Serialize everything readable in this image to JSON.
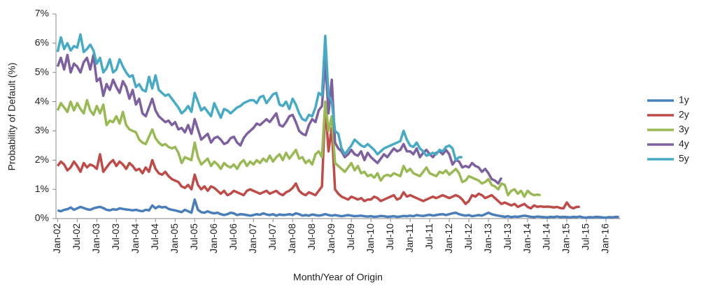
{
  "chart_data": {
    "type": "line",
    "x_label": "Month/Year of Origin",
    "y_label": "Probability of Default (%)",
    "categories": [
      "Jan-02",
      null,
      null,
      null,
      null,
      null,
      "Jul-02",
      null,
      null,
      null,
      null,
      null,
      "Jan-03",
      null,
      null,
      null,
      null,
      null,
      "Jul-03",
      null,
      null,
      null,
      null,
      null,
      "Jan-04",
      null,
      null,
      null,
      null,
      null,
      "Jul-04",
      null,
      null,
      null,
      null,
      null,
      "Jan-05",
      null,
      null,
      null,
      null,
      null,
      "Jul-05",
      null,
      null,
      null,
      null,
      null,
      "Jan-06",
      null,
      null,
      null,
      null,
      null,
      "Jul-06",
      null,
      null,
      null,
      null,
      null,
      "Jan-07",
      null,
      null,
      null,
      null,
      null,
      "Jul-07",
      null,
      null,
      null,
      null,
      null,
      "Jan-08",
      null,
      null,
      null,
      null,
      null,
      "Jul-08",
      null,
      null,
      null,
      null,
      null,
      "Jan-09",
      null,
      null,
      null,
      null,
      null,
      "Jul-09",
      null,
      null,
      null,
      null,
      null,
      "Jan-10",
      null,
      null,
      null,
      null,
      null,
      "Jul-10",
      null,
      null,
      null,
      null,
      null,
      "Jan-11",
      null,
      null,
      null,
      null,
      null,
      "Jul-11",
      null,
      null,
      null,
      null,
      null,
      "Jan-12",
      null,
      null,
      null,
      null,
      null,
      "Jul-12",
      null,
      null,
      null,
      null,
      null,
      "Jan-13",
      null,
      null,
      null,
      null,
      null,
      "Jul-13",
      null,
      null,
      null,
      null,
      null,
      "Jan-14",
      null,
      null,
      null,
      null,
      null,
      "Jul-14",
      null,
      null,
      null,
      null,
      null,
      "Jan-15",
      null,
      null,
      null,
      null,
      null,
      "Jul-15",
      null,
      null,
      null,
      null,
      null,
      "Jan-16",
      null,
      null,
      null,
      null
    ],
    "series": [
      {
        "name": "1y",
        "color": "#4a7ebb",
        "values": [
          0.28,
          0.25,
          0.3,
          0.32,
          0.38,
          0.3,
          0.35,
          0.4,
          0.36,
          0.32,
          0.3,
          0.35,
          0.38,
          0.4,
          0.36,
          0.3,
          0.28,
          0.32,
          0.3,
          0.35,
          0.33,
          0.31,
          0.3,
          0.28,
          0.3,
          0.27,
          0.25,
          0.3,
          0.28,
          0.45,
          0.35,
          0.42,
          0.38,
          0.4,
          0.33,
          0.3,
          0.28,
          0.25,
          0.22,
          0.3,
          0.25,
          0.2,
          0.65,
          0.3,
          0.22,
          0.2,
          0.25,
          0.2,
          0.18,
          0.2,
          0.15,
          0.12,
          0.15,
          0.2,
          0.18,
          0.12,
          0.15,
          0.14,
          0.12,
          0.1,
          0.12,
          0.15,
          0.13,
          0.18,
          0.14,
          0.12,
          0.15,
          0.1,
          0.14,
          0.12,
          0.13,
          0.15,
          0.12,
          0.18,
          0.15,
          0.1,
          0.12,
          0.1,
          0.14,
          0.12,
          0.1,
          0.12,
          0.15,
          0.12,
          0.1,
          0.12,
          0.1,
          0.08,
          0.1,
          0.12,
          0.1,
          0.08,
          0.09,
          0.1,
          0.08,
          0.07,
          0.08,
          0.06,
          0.07,
          0.09,
          0.08,
          0.06,
          0.07,
          0.08,
          0.06,
          0.07,
          0.09,
          0.08,
          0.1,
          0.08,
          0.12,
          0.1,
          0.09,
          0.11,
          0.13,
          0.1,
          0.12,
          0.14,
          0.15,
          0.12,
          0.15,
          0.18,
          0.2,
          0.15,
          0.12,
          0.1,
          0.12,
          0.08,
          0.1,
          0.12,
          0.1,
          0.15,
          0.2,
          0.15,
          0.12,
          0.1,
          0.08,
          0.06,
          0.08,
          0.05,
          0.07,
          0.06,
          0.08,
          0.1,
          0.08,
          0.06,
          0.05,
          0.07,
          0.06,
          0.05,
          0.04,
          0.06,
          0.05,
          0.07,
          0.05,
          0.06,
          0.05,
          0.04,
          0.06,
          0.05,
          0.07,
          0.04,
          0.03,
          0.05,
          0.04,
          0.06,
          0.05,
          0.04,
          0.03,
          0.05,
          0.04,
          0.06,
          0.05
        ]
      },
      {
        "name": "2y",
        "color": "#be4b48",
        "values": [
          1.8,
          1.95,
          1.85,
          1.65,
          1.75,
          1.95,
          1.8,
          1.6,
          1.9,
          1.75,
          1.85,
          1.8,
          1.7,
          2.2,
          1.6,
          1.75,
          1.9,
          2.0,
          1.8,
          1.95,
          1.85,
          1.7,
          1.9,
          1.8,
          1.65,
          1.7,
          1.55,
          1.75,
          1.6,
          2.0,
          1.7,
          1.55,
          1.5,
          1.6,
          1.45,
          1.35,
          1.3,
          1.25,
          1.1,
          1.05,
          1.15,
          1.0,
          1.5,
          1.15,
          1.0,
          1.1,
          0.95,
          1.1,
          1.05,
          0.95,
          0.85,
          0.95,
          0.8,
          0.85,
          0.95,
          0.9,
          0.85,
          0.8,
          0.95,
          1.0,
          0.95,
          0.9,
          0.85,
          0.9,
          0.95,
          0.85,
          0.9,
          0.95,
          0.85,
          0.8,
          0.9,
          0.95,
          1.05,
          1.2,
          0.95,
          0.85,
          0.8,
          0.9,
          0.85,
          0.8,
          0.95,
          1.1,
          3.9,
          2.3,
          3.1,
          1.0,
          0.85,
          0.75,
          0.7,
          0.65,
          0.75,
          0.7,
          0.65,
          0.7,
          0.6,
          0.65,
          0.65,
          0.75,
          0.7,
          0.6,
          0.65,
          0.7,
          0.75,
          0.8,
          0.65,
          0.7,
          0.9,
          0.75,
          0.8,
          0.75,
          0.7,
          0.65,
          0.6,
          0.65,
          0.7,
          0.75,
          0.7,
          0.75,
          0.8,
          0.75,
          0.7,
          0.75,
          0.8,
          0.75,
          0.65,
          0.5,
          0.6,
          0.8,
          0.75,
          0.85,
          0.8,
          0.7,
          0.75,
          0.8,
          0.7,
          0.6,
          0.5,
          0.55,
          0.5,
          0.45,
          0.5,
          0.4,
          0.45,
          0.5,
          0.4,
          0.35,
          0.45,
          0.4,
          0.42,
          0.4,
          0.41,
          0.4,
          0.38,
          0.4,
          0.36,
          0.35,
          0.55,
          0.4,
          0.35,
          0.4,
          0.4,
          null,
          null,
          null,
          null,
          null,
          null,
          null,
          null,
          null,
          null,
          null,
          null
        ]
      },
      {
        "name": "3y",
        "color": "#98b954",
        "values": [
          3.7,
          3.95,
          3.8,
          3.65,
          4.0,
          3.7,
          3.95,
          3.75,
          3.6,
          4.05,
          3.7,
          3.55,
          3.85,
          3.6,
          3.9,
          3.2,
          3.35,
          3.3,
          3.5,
          3.25,
          3.65,
          3.2,
          3.05,
          3.0,
          2.95,
          2.7,
          2.6,
          2.55,
          2.8,
          3.05,
          2.75,
          2.6,
          2.5,
          2.55,
          2.45,
          2.4,
          2.45,
          2.25,
          1.9,
          2.1,
          2.05,
          2.0,
          2.6,
          2.1,
          1.85,
          1.95,
          2.05,
          1.8,
          1.95,
          1.85,
          1.7,
          1.9,
          1.8,
          1.75,
          1.85,
          1.7,
          1.9,
          2.0,
          1.8,
          1.95,
          1.85,
          2.0,
          1.9,
          2.05,
          1.95,
          2.15,
          1.95,
          2.1,
          2.2,
          2.0,
          2.25,
          2.05,
          2.2,
          2.35,
          2.05,
          2.1,
          1.9,
          2.0,
          1.85,
          2.2,
          2.3,
          2.1,
          4.0,
          3.0,
          3.5,
          1.9,
          1.8,
          1.7,
          1.6,
          1.75,
          1.9,
          1.65,
          1.8,
          1.55,
          1.6,
          1.45,
          1.5,
          1.4,
          1.55,
          1.3,
          1.45,
          1.5,
          1.45,
          1.55,
          1.5,
          1.45,
          1.8,
          1.6,
          1.7,
          1.55,
          1.5,
          1.45,
          1.6,
          1.75,
          1.55,
          1.5,
          1.45,
          1.6,
          1.55,
          1.65,
          1.5,
          1.6,
          1.7,
          1.55,
          1.25,
          1.3,
          1.45,
          1.4,
          1.35,
          1.3,
          1.2,
          1.25,
          1.35,
          1.15,
          1.1,
          1.0,
          1.2,
          1.15,
          0.8,
          0.95,
          1.0,
          0.85,
          0.95,
          0.75,
          0.95,
          0.85,
          0.8,
          0.82,
          0.8,
          null,
          null,
          null,
          null,
          null,
          null,
          null,
          null,
          null,
          null,
          null,
          null,
          null,
          null,
          null,
          null,
          null,
          null,
          null,
          null,
          null,
          null,
          null,
          null
        ]
      },
      {
        "name": "4y",
        "color": "#7d60a0",
        "values": [
          5.2,
          5.5,
          5.1,
          5.6,
          5.0,
          5.3,
          5.2,
          5.0,
          5.35,
          5.5,
          5.1,
          5.6,
          4.7,
          4.8,
          4.2,
          4.6,
          4.4,
          4.75,
          4.5,
          4.3,
          4.7,
          4.5,
          4.1,
          4.4,
          3.9,
          4.1,
          3.6,
          3.5,
          3.8,
          4.1,
          3.7,
          3.5,
          3.4,
          3.3,
          3.35,
          3.2,
          3.3,
          3.05,
          3.1,
          2.95,
          3.2,
          2.9,
          3.4,
          3.05,
          2.7,
          2.8,
          2.9,
          2.6,
          2.75,
          2.8,
          2.7,
          2.55,
          2.6,
          2.75,
          2.8,
          2.6,
          2.5,
          2.75,
          2.9,
          3.0,
          3.1,
          3.25,
          3.2,
          3.3,
          3.4,
          3.3,
          3.45,
          3.6,
          3.2,
          3.15,
          3.3,
          3.5,
          3.55,
          3.3,
          3.0,
          2.9,
          2.85,
          3.2,
          3.4,
          3.3,
          3.7,
          3.85,
          5.4,
          3.6,
          4.75,
          2.6,
          2.4,
          2.3,
          2.1,
          2.2,
          2.35,
          2.2,
          2.15,
          2.3,
          2.0,
          2.25,
          2.1,
          2.0,
          1.9,
          2.05,
          2.2,
          2.1,
          2.25,
          2.4,
          2.3,
          2.35,
          2.55,
          2.3,
          2.3,
          2.2,
          2.4,
          2.1,
          2.25,
          2.35,
          2.2,
          2.1,
          2.25,
          2.3,
          2.2,
          2.35,
          2.2,
          1.85,
          2.0,
          1.95,
          1.75,
          1.8,
          1.75,
          1.9,
          1.8,
          1.75,
          1.6,
          1.7,
          1.55,
          1.35,
          1.3,
          1.2,
          1.4,
          null,
          null,
          null,
          null,
          null,
          null,
          null,
          null,
          null,
          null,
          null,
          null,
          null,
          null,
          null,
          null,
          null,
          null,
          null,
          null,
          null,
          null,
          null,
          null,
          null,
          null,
          null,
          null,
          null,
          null,
          null,
          null,
          null,
          null,
          null,
          null
        ]
      },
      {
        "name": "5y",
        "color": "#46aac5",
        "values": [
          5.7,
          6.2,
          5.8,
          6.0,
          5.75,
          5.9,
          5.85,
          6.3,
          5.7,
          5.8,
          5.95,
          5.75,
          5.3,
          5.5,
          5.0,
          5.15,
          5.45,
          5.0,
          5.1,
          5.45,
          5.2,
          5.0,
          4.85,
          4.9,
          4.5,
          4.6,
          4.4,
          4.35,
          4.85,
          4.45,
          4.9,
          4.4,
          4.3,
          4.2,
          4.25,
          4.1,
          3.95,
          3.8,
          3.6,
          3.7,
          3.85,
          3.65,
          4.3,
          4.0,
          3.7,
          3.8,
          3.65,
          3.5,
          3.95,
          3.7,
          3.45,
          3.75,
          3.7,
          3.6,
          3.7,
          3.8,
          3.85,
          3.95,
          4.0,
          4.05,
          4.05,
          3.95,
          4.15,
          4.2,
          3.95,
          4.1,
          4.25,
          4.3,
          3.9,
          3.85,
          4.0,
          3.75,
          4.1,
          3.9,
          3.6,
          3.4,
          3.35,
          3.55,
          3.5,
          3.8,
          4.3,
          4.2,
          6.25,
          4.2,
          4.0,
          3.0,
          2.9,
          2.4,
          2.2,
          2.35,
          2.5,
          2.7,
          2.6,
          2.5,
          2.45,
          2.55,
          2.45,
          2.35,
          2.2,
          2.3,
          2.4,
          2.45,
          2.5,
          2.55,
          2.6,
          2.65,
          3.0,
          2.7,
          2.5,
          2.45,
          2.6,
          2.4,
          2.3,
          2.15,
          2.2,
          2.25,
          2.2,
          2.35,
          2.3,
          2.45,
          2.5,
          2.4,
          2.0,
          2.1,
          2.1,
          null,
          null,
          null,
          null,
          null,
          null,
          null,
          null,
          null,
          null,
          null,
          null,
          null,
          null,
          null,
          null,
          null,
          null,
          null,
          null,
          null,
          null,
          null,
          null,
          null,
          null,
          null,
          null,
          null,
          null,
          null,
          null,
          null,
          null,
          null,
          null,
          null,
          null,
          null,
          null,
          null,
          null,
          null,
          null,
          null,
          null,
          null,
          null
        ]
      }
    ],
    "ylim": [
      0,
      7
    ],
    "yticks": [
      {
        "value": 0,
        "label": "0%"
      },
      {
        "value": 1,
        "label": "1%"
      },
      {
        "value": 2,
        "label": "2%"
      },
      {
        "value": 3,
        "label": "3%"
      },
      {
        "value": 4,
        "label": "4%"
      },
      {
        "value": 5,
        "label": "5%"
      },
      {
        "value": 6,
        "label": "6%"
      },
      {
        "value": 7,
        "label": "7%"
      }
    ],
    "grid": false,
    "legend": "right"
  }
}
